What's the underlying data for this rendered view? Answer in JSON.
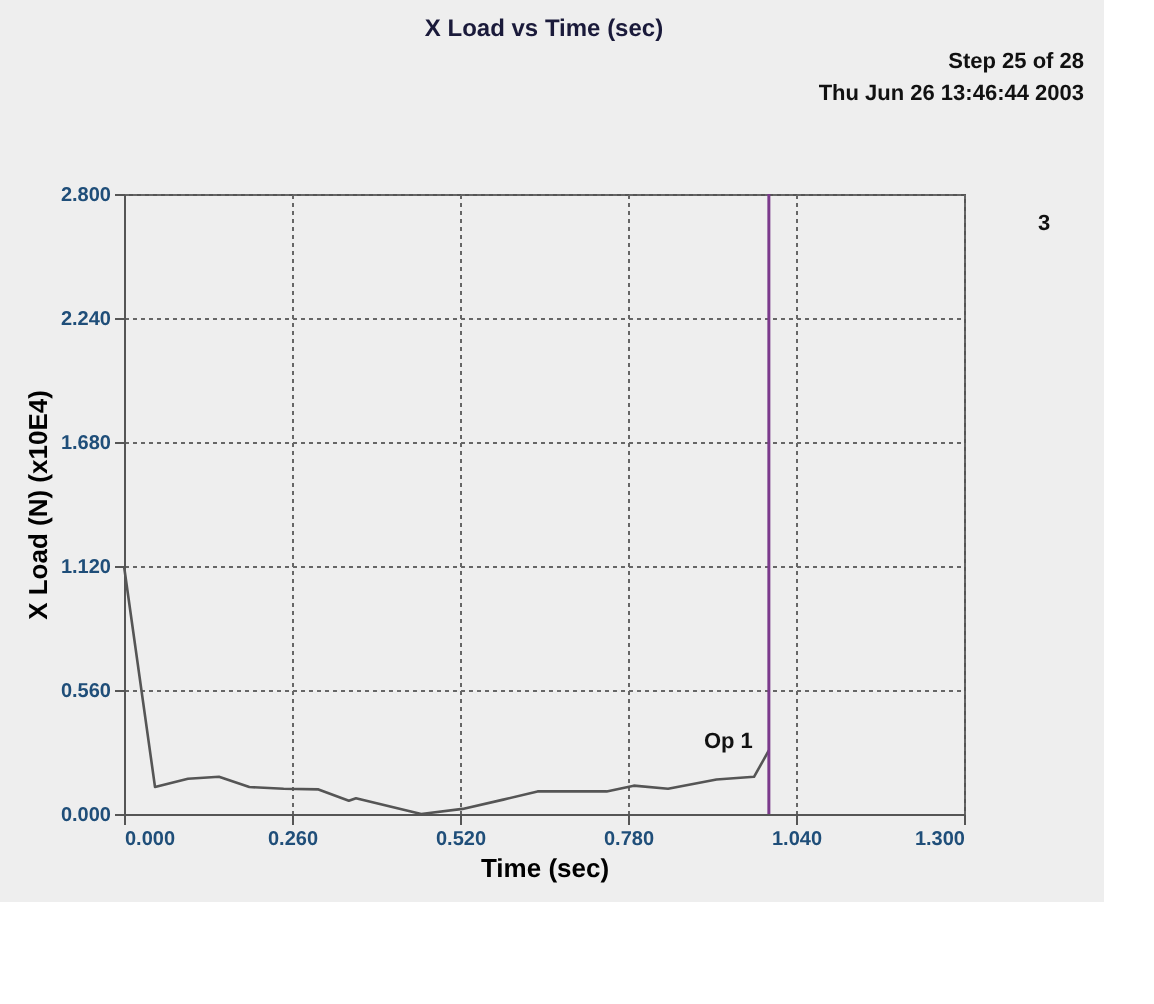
{
  "chart_data": {
    "type": "line",
    "title": "X Load vs Time (sec)",
    "xlabel": "Time (sec)",
    "ylabel": "X Load (N) (x10E4)",
    "x": [
      0.0,
      0.048,
      0.099,
      0.147,
      0.194,
      0.247,
      0.301,
      0.348,
      0.359,
      0.46,
      0.524,
      0.587,
      0.64,
      0.694,
      0.747,
      0.789,
      0.842,
      0.917,
      0.975,
      0.998
    ],
    "series": [
      {
        "color": "#555555",
        "values": [
          1.12,
          0.122,
          0.159,
          0.168,
          0.122,
          0.114,
          0.111,
          0.06,
          0.071,
          0.0,
          0.023,
          0.065,
          0.102,
          0.102,
          0.102,
          0.128,
          0.114,
          0.156,
          0.168,
          0.287
        ]
      }
    ],
    "xlim": [
      0,
      1.3
    ],
    "ylim": [
      0,
      2.8
    ],
    "xticks": [
      {
        "value": 0,
        "label": "0.000"
      },
      {
        "value": 0.26,
        "label": "0.260"
      },
      {
        "value": 0.52,
        "label": "0.520"
      },
      {
        "value": 0.78,
        "label": "0.780"
      },
      {
        "value": 1.04,
        "label": "1.040"
      },
      {
        "value": 1.3,
        "label": "1.300"
      }
    ],
    "yticks": [
      {
        "value": 0,
        "label": "0.000"
      },
      {
        "value": 0.56,
        "label": "0.560"
      },
      {
        "value": 1.12,
        "label": "1.120"
      },
      {
        "value": 1.68,
        "label": "1.680"
      },
      {
        "value": 2.24,
        "label": "2.240"
      },
      {
        "value": 2.8,
        "label": "2.800"
      }
    ],
    "ref_lines": [
      {
        "axis": "x",
        "value": 0.998,
        "color": "#7b3a8c"
      }
    ],
    "annotations": [
      {
        "text": "Op 1",
        "x": 0.998,
        "y": 0.287
      },
      "3",
      "Step 25 of 28",
      "Thu Jun 26 13:46:44 2003"
    ],
    "grid": true,
    "line_style": "solid",
    "marker": "none"
  }
}
